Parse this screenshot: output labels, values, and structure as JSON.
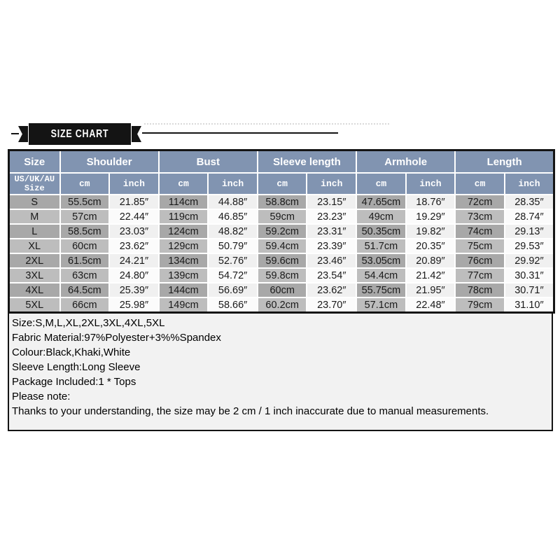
{
  "banner": {
    "title": "SIZE CHART"
  },
  "table": {
    "col_groups": [
      "Size",
      "Shoulder",
      "Bust",
      "Sleeve length",
      "Armhole",
      "Length"
    ],
    "sub_header": {
      "size_label_line1": "US/UK/AU",
      "size_label_line2": "Size",
      "unit_cm": "cm",
      "unit_inch": "inch"
    },
    "rows": [
      {
        "size": "S",
        "cells": [
          "55.5cm",
          "21.85″",
          "114cm",
          "44.88″",
          "58.8cm",
          "23.15″",
          "47.65cm",
          "18.76″",
          "72cm",
          "28.35″"
        ]
      },
      {
        "size": "M",
        "cells": [
          "57cm",
          "22.44″",
          "119cm",
          "46.85″",
          "59cm",
          "23.23″",
          "49cm",
          "19.29″",
          "73cm",
          "28.74″"
        ]
      },
      {
        "size": "L",
        "cells": [
          "58.5cm",
          "23.03″",
          "124cm",
          "48.82″",
          "59.2cm",
          "23.31″",
          "50.35cm",
          "19.82″",
          "74cm",
          "29.13″"
        ]
      },
      {
        "size": "XL",
        "cells": [
          "60cm",
          "23.62″",
          "129cm",
          "50.79″",
          "59.4cm",
          "23.39″",
          "51.7cm",
          "20.35″",
          "75cm",
          "29.53″"
        ]
      },
      {
        "size": "2XL",
        "cells": [
          "61.5cm",
          "24.21″",
          "134cm",
          "52.76″",
          "59.6cm",
          "23.46″",
          "53.05cm",
          "20.89″",
          "76cm",
          "29.92″"
        ]
      },
      {
        "size": "3XL",
        "cells": [
          "63cm",
          "24.80″",
          "139cm",
          "54.72″",
          "59.8cm",
          "23.54″",
          "54.4cm",
          "21.42″",
          "77cm",
          "30.31″"
        ]
      },
      {
        "size": "4XL",
        "cells": [
          "64.5cm",
          "25.39″",
          "144cm",
          "56.69″",
          "60cm",
          "23.62″",
          "55.75cm",
          "21.95″",
          "78cm",
          "30.71″"
        ]
      },
      {
        "size": "5XL",
        "cells": [
          "66cm",
          "25.98″",
          "149cm",
          "58.66″",
          "60.2cm",
          "23.70″",
          "57.1cm",
          "22.48″",
          "79cm",
          "31.10″"
        ]
      }
    ]
  },
  "notes": {
    "lines": [
      "Size:S,M,L,XL,2XL,3XL,4XL,5XL",
      "Fabric Material:97%Polyester+3%%Spandex",
      "Colour:Black,Khaki,White",
      "Sleeve Length:Long Sleeve",
      "Package Included:1 * Tops",
      "Please note:",
      "Thanks to your understanding, the size may be 2 cm / 1 inch inaccurate due to manual measurements."
    ]
  },
  "colors": {
    "header_bg": "#8194B1",
    "ribbon_black": "#141414",
    "row_gray_dark": "#A8A8A8",
    "row_gray_light": "#BDBDBD",
    "inch_cell_dark": "#F0F0F0",
    "inch_cell_light": "#FBFBFB",
    "notes_bg": "#F2F2F2"
  }
}
